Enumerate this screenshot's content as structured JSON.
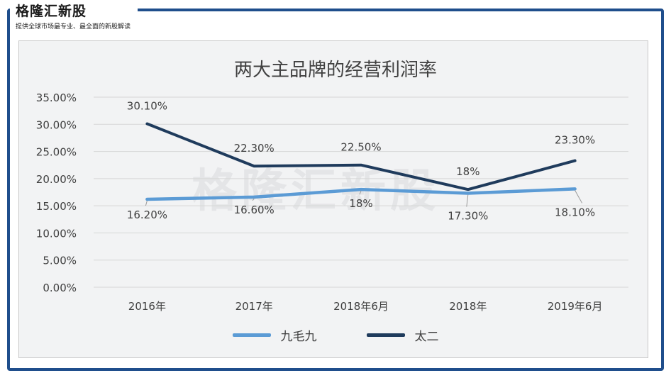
{
  "brand": {
    "logo_text": "格隆汇新股",
    "tagline": "提供全球市场最专业、最全面的新股解读",
    "watermark": "格隆汇新股"
  },
  "colors": {
    "frame": "#1f4e8c",
    "series_light": "#5b9bd5",
    "series_dark": "#1f3b5c"
  },
  "chart_data": {
    "type": "line",
    "title": "两大主品牌的经营利润率",
    "categories": [
      "2016年",
      "2017年",
      "2018年6月",
      "2018年",
      "2019年6月"
    ],
    "y_ticks": [
      "35.00%",
      "30.00%",
      "25.00%",
      "20.00%",
      "15.00%",
      "10.00%",
      "5.00%",
      "0.00%"
    ],
    "ylim": [
      0,
      35
    ],
    "grid": true,
    "legend_position": "bottom",
    "series": [
      {
        "name": "九毛九",
        "values": [
          16.2,
          16.6,
          18.0,
          17.3,
          18.1
        ],
        "labels": [
          "16.20%",
          "16.60%",
          "18%",
          "17.30%",
          "18.10%"
        ],
        "color": "#5b9bd5"
      },
      {
        "name": "太二",
        "values": [
          30.1,
          22.3,
          22.5,
          18.0,
          23.3
        ],
        "labels": [
          "30.10%",
          "22.30%",
          "22.50%",
          "18%",
          "23.30%"
        ],
        "color": "#1f3b5c"
      }
    ]
  }
}
